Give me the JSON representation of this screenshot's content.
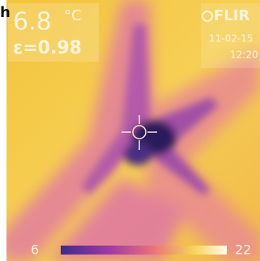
{
  "caption": "h",
  "readout": {
    "temperature": "6.8",
    "unit": "°C",
    "emissivity": "ε=0.98"
  },
  "logo": "FLIR",
  "date": "11-02-15",
  "time": "12:20",
  "scale": {
    "min": "6",
    "max": "22"
  }
}
